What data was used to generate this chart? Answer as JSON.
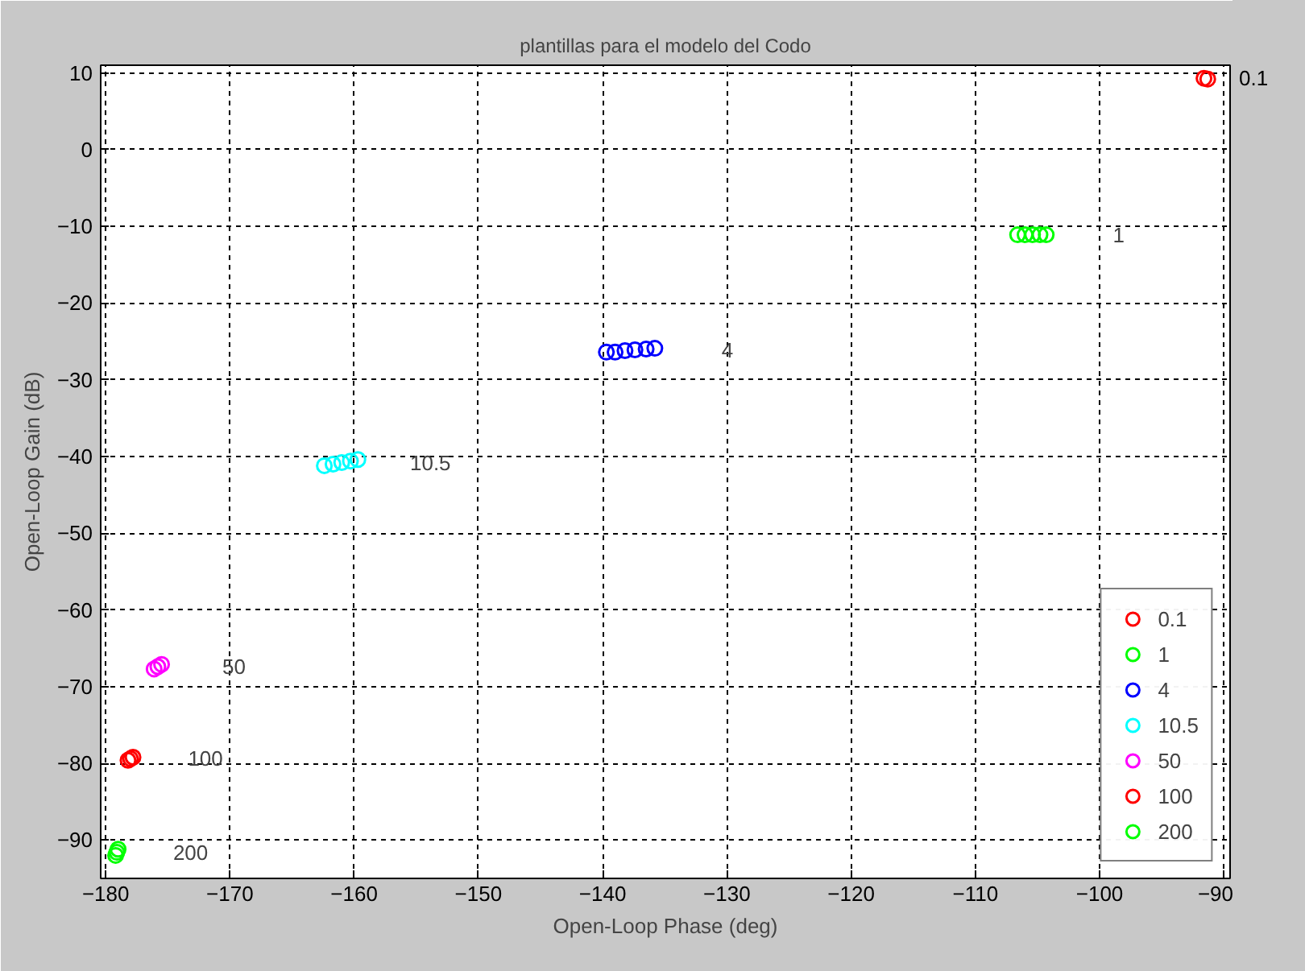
{
  "chart_data": {
    "type": "scatter",
    "title": "plantillas para el modelo del Codo",
    "xlabel": "Open-Loop Phase (deg)",
    "ylabel": "Open-Loop Gain (dB)",
    "xlim": [
      -180.4,
      -89.5
    ],
    "ylim": [
      -95,
      11
    ],
    "xticks": [
      -180,
      -170,
      -160,
      -150,
      -140,
      -130,
      -120,
      -110,
      -100,
      -90
    ],
    "yticks": [
      -90,
      -80,
      -70,
      -60,
      -50,
      -40,
      -30,
      -20,
      -10,
      0,
      10
    ],
    "grid": true,
    "legend": "bottom right",
    "marker": "circle",
    "series": [
      {
        "name": "0.1",
        "color": "#ff0000",
        "x": [
          -91.6,
          -91.3
        ],
        "values": [
          9.3,
          9.2
        ]
      },
      {
        "name": "1",
        "color": "#00ff00",
        "x": [
          -106.6,
          -106.0,
          -105.4,
          -104.8,
          -104.3
        ],
        "values": [
          -11.1,
          -11.1,
          -11.1,
          -11.1,
          -11.1
        ]
      },
      {
        "name": "4",
        "color": "#0000ff",
        "x": [
          -139.7,
          -139.0,
          -138.2,
          -137.4,
          -136.5,
          -135.8
        ],
        "values": [
          -26.4,
          -26.4,
          -26.2,
          -26.1,
          -26.0,
          -25.9
        ]
      },
      {
        "name": "10.5",
        "color": "#00ffff",
        "x": [
          -162.4,
          -161.7,
          -161.0,
          -160.3,
          -159.7
        ],
        "values": [
          -41.2,
          -41.0,
          -40.8,
          -40.6,
          -40.4
        ]
      },
      {
        "name": "50",
        "color": "#ff00ff",
        "x": [
          -176.1,
          -175.8,
          -175.5
        ],
        "values": [
          -67.7,
          -67.4,
          -67.1
        ]
      },
      {
        "name": "100",
        "color": "#ff0000",
        "x": [
          -178.2,
          -178.0,
          -177.8
        ],
        "values": [
          -79.6,
          -79.4,
          -79.2
        ]
      },
      {
        "name": "200",
        "color": "#00ff00",
        "x": [
          -179.2,
          -179.1,
          -179.0
        ],
        "values": [
          -92.0,
          -91.6,
          -91.2
        ]
      }
    ],
    "annotations": [
      "0.1",
      "1",
      "4",
      "10.5",
      "50",
      "100",
      "200"
    ]
  }
}
